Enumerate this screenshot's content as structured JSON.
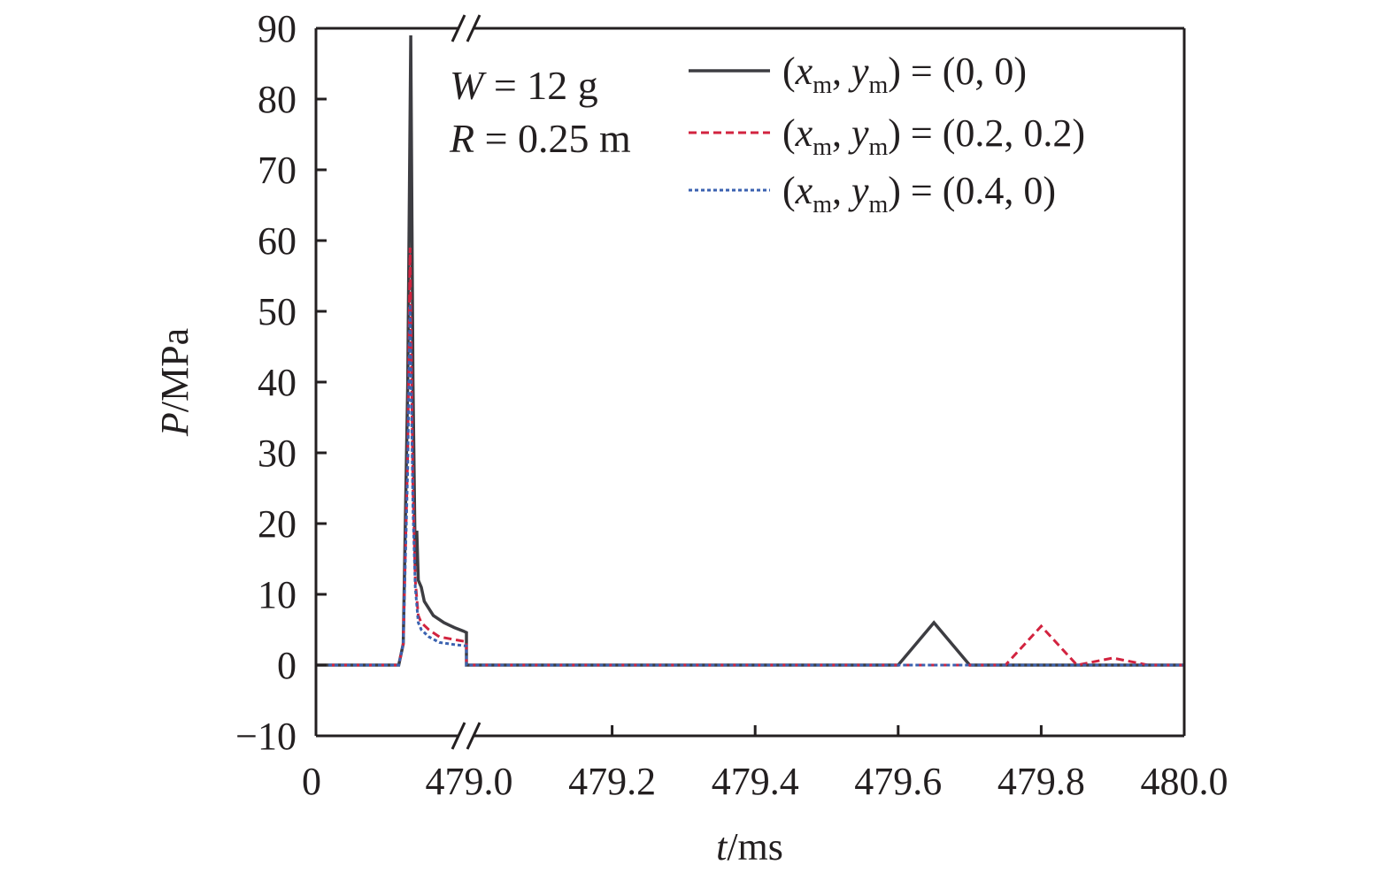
{
  "chart_data": {
    "type": "line",
    "title": "",
    "xlabel": "t/ms",
    "xlabel_parts": {
      "var": "t",
      "unit": "/ms"
    },
    "ylabel": "P/MPa",
    "ylabel_parts": {
      "var": "P",
      "unit": "/MPa"
    },
    "ylim": [
      -10,
      90
    ],
    "yticks": [
      -10,
      0,
      10,
      20,
      30,
      40,
      50,
      60,
      70,
      80,
      90
    ],
    "ytick_labels": [
      "−10",
      "0",
      "10",
      "20",
      "30",
      "40",
      "50",
      "60",
      "70",
      "80",
      "90"
    ],
    "x_axis_break": true,
    "x_break_position": "between 0 and 479.0",
    "xticks": [
      0,
      479.0,
      479.2,
      479.4,
      479.6,
      479.8,
      480.0
    ],
    "xtick_labels": [
      "0",
      "479.0",
      "479.2",
      "479.4",
      "479.6",
      "479.8",
      "480.0"
    ],
    "xlim_after_break": [
      479.0,
      480.0
    ],
    "grid": false,
    "legend_position": "upper right",
    "annotations": [
      {
        "var": "W",
        "text": " = 12 g"
      },
      {
        "var": "R",
        "text": " = 0.25 m"
      }
    ],
    "series": [
      {
        "name": "(x_m, y_m) = (0, 0)",
        "legend": {
          "open": "(",
          "x": "x",
          "sx": "m",
          "sep": ", ",
          "y": "y",
          "sy": "m",
          "close": ") = (0, 0)"
        },
        "color": "#3d3d42",
        "style": "solid",
        "pre_break": [
          [
            0.0,
            0
          ],
          [
            0.55,
            0
          ],
          [
            0.58,
            3
          ],
          [
            0.61,
            40
          ],
          [
            0.63,
            89
          ],
          [
            0.645,
            40
          ],
          [
            0.66,
            14
          ],
          [
            0.67,
            19
          ],
          [
            0.68,
            12
          ],
          [
            0.7,
            11
          ],
          [
            0.72,
            9
          ],
          [
            0.78,
            7
          ],
          [
            0.85,
            6
          ],
          [
            0.92,
            5.3
          ],
          [
            0.98,
            4.8
          ],
          [
            1.0,
            4.6
          ],
          [
            1.0,
            0
          ]
        ],
        "post_break": [
          [
            479.0,
            0
          ],
          [
            479.6,
            0
          ],
          [
            479.65,
            6
          ],
          [
            479.7,
            0
          ],
          [
            480.0,
            0
          ]
        ],
        "peak": 89
      },
      {
        "name": "(x_m, y_m) = (0.2, 0.2)",
        "legend": {
          "open": "(",
          "x": "x",
          "sx": "m",
          "sep": ", ",
          "y": "y",
          "sy": "m",
          "close": ") = (0.2, 0.2)"
        },
        "color": "#d2233f",
        "style": "dashed",
        "pre_break": [
          [
            0.0,
            0
          ],
          [
            0.55,
            0
          ],
          [
            0.58,
            3
          ],
          [
            0.61,
            30
          ],
          [
            0.625,
            59
          ],
          [
            0.645,
            25
          ],
          [
            0.66,
            12
          ],
          [
            0.68,
            7
          ],
          [
            0.7,
            6
          ],
          [
            0.75,
            5
          ],
          [
            0.82,
            4
          ],
          [
            0.92,
            3.6
          ],
          [
            1.0,
            3.3
          ],
          [
            1.0,
            0
          ]
        ],
        "post_break": [
          [
            479.0,
            0
          ],
          [
            479.75,
            0
          ],
          [
            479.8,
            5.5
          ],
          [
            479.85,
            0
          ],
          [
            479.9,
            1
          ],
          [
            479.95,
            0
          ],
          [
            480.0,
            0
          ]
        ],
        "peak": 59
      },
      {
        "name": "(x_m, y_m) = (0.4, 0)",
        "legend": {
          "open": "(",
          "x": "x",
          "sx": "m",
          "sep": ", ",
          "y": "y",
          "sy": "m",
          "close": ") = (0.4, 0)"
        },
        "color": "#3b62b0",
        "style": "dotted",
        "pre_break": [
          [
            0.0,
            0
          ],
          [
            0.55,
            0
          ],
          [
            0.58,
            3
          ],
          [
            0.61,
            28
          ],
          [
            0.625,
            51
          ],
          [
            0.645,
            22
          ],
          [
            0.66,
            11
          ],
          [
            0.68,
            6
          ],
          [
            0.7,
            5
          ],
          [
            0.75,
            4
          ],
          [
            0.82,
            3.2
          ],
          [
            0.92,
            2.9
          ],
          [
            1.0,
            2.7
          ],
          [
            1.0,
            0
          ]
        ],
        "post_break": [
          [
            479.0,
            0
          ],
          [
            480.0,
            0
          ]
        ],
        "peak": 51
      }
    ]
  }
}
